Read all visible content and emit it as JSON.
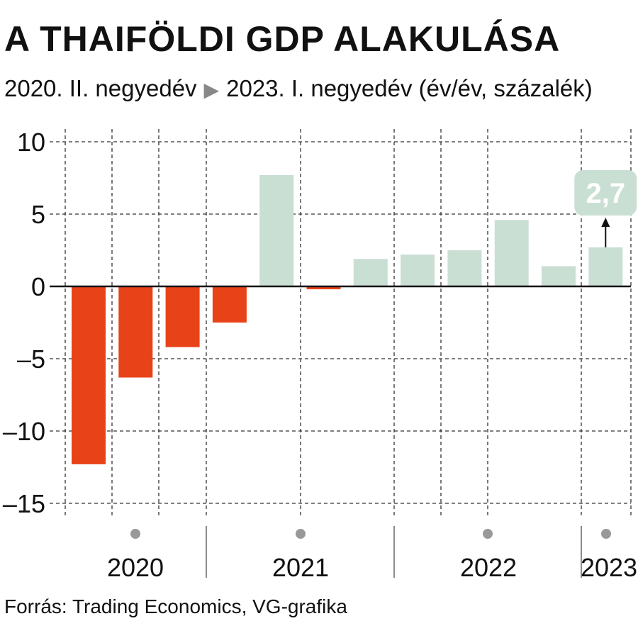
{
  "title": "A THAIFÖLDI GDP ALAKULÁSA",
  "subtitle": {
    "start": "2020. II. negyedév",
    "arrow": "▶",
    "end": "2023. I. negyedév (év/év, százalék)"
  },
  "source": "Forrás: Trading Economics, VG-grafika",
  "colors": {
    "negative": "#e84218",
    "positive": "#cadfd3",
    "grid": "#333333"
  },
  "chart_data": {
    "type": "bar",
    "categories": [
      "2020 Q2",
      "2020 Q3",
      "2020 Q4",
      "2021 Q1",
      "2021 Q2",
      "2021 Q3",
      "2021 Q4",
      "2022 Q1",
      "2022 Q2",
      "2022 Q3",
      "2022 Q4",
      "2023 Q1"
    ],
    "values": [
      -12.3,
      -6.3,
      -4.2,
      -2.5,
      7.7,
      -0.2,
      1.9,
      2.2,
      2.5,
      4.6,
      1.4,
      2.7
    ],
    "ylim": [
      -15,
      10
    ],
    "yticks": [
      10,
      5,
      0,
      -5,
      -10,
      -15
    ],
    "ytick_labels": [
      "10",
      "5",
      "0",
      "–5",
      "–10",
      "–15"
    ],
    "year_labels": [
      "2020",
      "2021",
      "2022",
      "2023"
    ],
    "annotation": {
      "index": 11,
      "text": "2,7"
    },
    "grid": true
  }
}
